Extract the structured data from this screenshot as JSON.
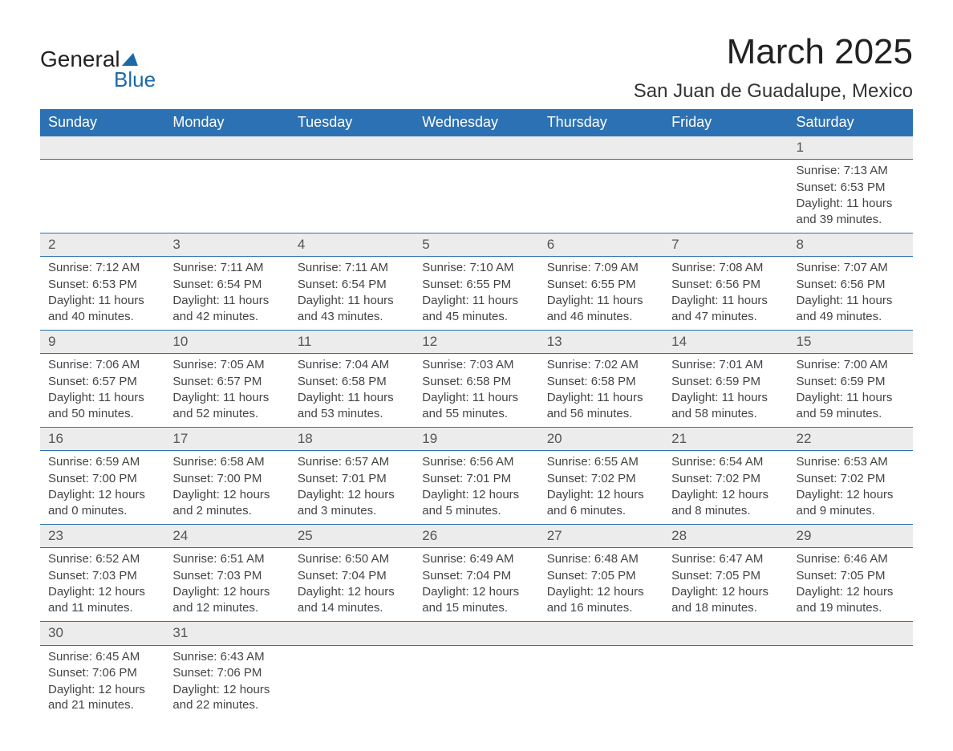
{
  "logo": {
    "text1": "General",
    "text2": "Blue"
  },
  "title": "March 2025",
  "subtitle": "San Juan de Guadalupe, Mexico",
  "colors": {
    "header_bg": "#2c71b3",
    "header_fg": "#ffffff",
    "row_border": "#2c71b3",
    "daynum_bg": "#ececec",
    "page_bg": "#ffffff",
    "text": "#444444",
    "logo_accent": "#1c69a8"
  },
  "typography": {
    "title_fontsize": 44,
    "subtitle_fontsize": 24,
    "header_fontsize": 18,
    "body_fontsize": 15
  },
  "columns": [
    "Sunday",
    "Monday",
    "Tuesday",
    "Wednesday",
    "Thursday",
    "Friday",
    "Saturday"
  ],
  "weeks": [
    [
      null,
      null,
      null,
      null,
      null,
      null,
      {
        "n": 1,
        "sunrise": "7:13 AM",
        "sunset": "6:53 PM",
        "daylight": "11 hours and 39 minutes."
      }
    ],
    [
      {
        "n": 2,
        "sunrise": "7:12 AM",
        "sunset": "6:53 PM",
        "daylight": "11 hours and 40 minutes."
      },
      {
        "n": 3,
        "sunrise": "7:11 AM",
        "sunset": "6:54 PM",
        "daylight": "11 hours and 42 minutes."
      },
      {
        "n": 4,
        "sunrise": "7:11 AM",
        "sunset": "6:54 PM",
        "daylight": "11 hours and 43 minutes."
      },
      {
        "n": 5,
        "sunrise": "7:10 AM",
        "sunset": "6:55 PM",
        "daylight": "11 hours and 45 minutes."
      },
      {
        "n": 6,
        "sunrise": "7:09 AM",
        "sunset": "6:55 PM",
        "daylight": "11 hours and 46 minutes."
      },
      {
        "n": 7,
        "sunrise": "7:08 AM",
        "sunset": "6:56 PM",
        "daylight": "11 hours and 47 minutes."
      },
      {
        "n": 8,
        "sunrise": "7:07 AM",
        "sunset": "6:56 PM",
        "daylight": "11 hours and 49 minutes."
      }
    ],
    [
      {
        "n": 9,
        "sunrise": "7:06 AM",
        "sunset": "6:57 PM",
        "daylight": "11 hours and 50 minutes."
      },
      {
        "n": 10,
        "sunrise": "7:05 AM",
        "sunset": "6:57 PM",
        "daylight": "11 hours and 52 minutes."
      },
      {
        "n": 11,
        "sunrise": "7:04 AM",
        "sunset": "6:58 PM",
        "daylight": "11 hours and 53 minutes."
      },
      {
        "n": 12,
        "sunrise": "7:03 AM",
        "sunset": "6:58 PM",
        "daylight": "11 hours and 55 minutes."
      },
      {
        "n": 13,
        "sunrise": "7:02 AM",
        "sunset": "6:58 PM",
        "daylight": "11 hours and 56 minutes."
      },
      {
        "n": 14,
        "sunrise": "7:01 AM",
        "sunset": "6:59 PM",
        "daylight": "11 hours and 58 minutes."
      },
      {
        "n": 15,
        "sunrise": "7:00 AM",
        "sunset": "6:59 PM",
        "daylight": "11 hours and 59 minutes."
      }
    ],
    [
      {
        "n": 16,
        "sunrise": "6:59 AM",
        "sunset": "7:00 PM",
        "daylight": "12 hours and 0 minutes."
      },
      {
        "n": 17,
        "sunrise": "6:58 AM",
        "sunset": "7:00 PM",
        "daylight": "12 hours and 2 minutes."
      },
      {
        "n": 18,
        "sunrise": "6:57 AM",
        "sunset": "7:01 PM",
        "daylight": "12 hours and 3 minutes."
      },
      {
        "n": 19,
        "sunrise": "6:56 AM",
        "sunset": "7:01 PM",
        "daylight": "12 hours and 5 minutes."
      },
      {
        "n": 20,
        "sunrise": "6:55 AM",
        "sunset": "7:02 PM",
        "daylight": "12 hours and 6 minutes."
      },
      {
        "n": 21,
        "sunrise": "6:54 AM",
        "sunset": "7:02 PM",
        "daylight": "12 hours and 8 minutes."
      },
      {
        "n": 22,
        "sunrise": "6:53 AM",
        "sunset": "7:02 PM",
        "daylight": "12 hours and 9 minutes."
      }
    ],
    [
      {
        "n": 23,
        "sunrise": "6:52 AM",
        "sunset": "7:03 PM",
        "daylight": "12 hours and 11 minutes."
      },
      {
        "n": 24,
        "sunrise": "6:51 AM",
        "sunset": "7:03 PM",
        "daylight": "12 hours and 12 minutes."
      },
      {
        "n": 25,
        "sunrise": "6:50 AM",
        "sunset": "7:04 PM",
        "daylight": "12 hours and 14 minutes."
      },
      {
        "n": 26,
        "sunrise": "6:49 AM",
        "sunset": "7:04 PM",
        "daylight": "12 hours and 15 minutes."
      },
      {
        "n": 27,
        "sunrise": "6:48 AM",
        "sunset": "7:05 PM",
        "daylight": "12 hours and 16 minutes."
      },
      {
        "n": 28,
        "sunrise": "6:47 AM",
        "sunset": "7:05 PM",
        "daylight": "12 hours and 18 minutes."
      },
      {
        "n": 29,
        "sunrise": "6:46 AM",
        "sunset": "7:05 PM",
        "daylight": "12 hours and 19 minutes."
      }
    ],
    [
      {
        "n": 30,
        "sunrise": "6:45 AM",
        "sunset": "7:06 PM",
        "daylight": "12 hours and 21 minutes."
      },
      {
        "n": 31,
        "sunrise": "6:43 AM",
        "sunset": "7:06 PM",
        "daylight": "12 hours and 22 minutes."
      },
      null,
      null,
      null,
      null,
      null
    ]
  ],
  "labels": {
    "sunrise_prefix": "Sunrise: ",
    "sunset_prefix": "Sunset: ",
    "daylight_prefix": "Daylight: "
  }
}
